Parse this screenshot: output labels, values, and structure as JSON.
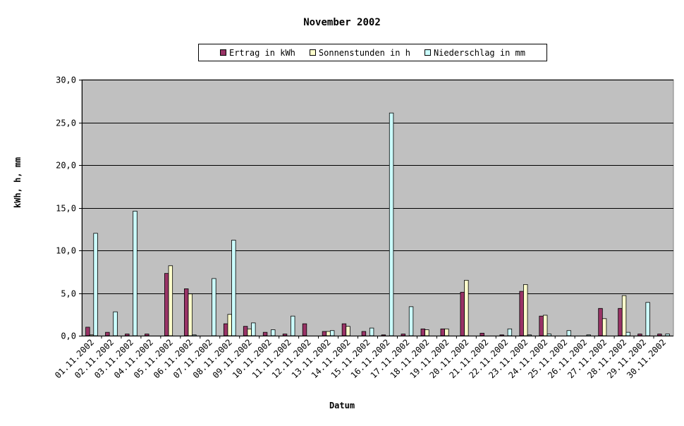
{
  "chart_data": {
    "type": "bar",
    "title": "November 2002",
    "xlabel": "Datum",
    "ylabel": "kWh, h, mm",
    "ylim": [
      0,
      30
    ],
    "yticks": [
      "0,0",
      "5,0",
      "10,0",
      "15,0",
      "20,0",
      "25,0",
      "30,0"
    ],
    "grid": true,
    "legend_position": "top",
    "categories": [
      "01.11.2002",
      "02.11.2002",
      "03.11.2002",
      "04.11.2002",
      "05.11.2002",
      "06.11.2002",
      "07.11.2002",
      "08.11.2002",
      "09.11.2002",
      "10.11.2002",
      "11.11.2002",
      "12.11.2002",
      "13.11.2002",
      "14.11.2002",
      "15.11.2002",
      "16.11.2002",
      "17.11.2002",
      "18.11.2002",
      "19.11.2002",
      "20.11.2002",
      "21.11.2002",
      "22.11.2002",
      "23.11.2002",
      "24.11.2002",
      "25.11.2002",
      "26.11.2002",
      "27.11.2002",
      "28.11.2002",
      "29.11.2002",
      "30.11.2002"
    ],
    "series": [
      {
        "name": "Ertrag in kWh",
        "color": "#993366",
        "values": [
          1.0,
          0.4,
          0.2,
          0.2,
          7.3,
          5.5,
          0,
          1.4,
          1.1,
          0.4,
          0.2,
          1.4,
          0.5,
          1.4,
          0.5,
          0.1,
          0.2,
          0.8,
          0.8,
          5.1,
          0.3,
          0.1,
          5.2,
          2.3,
          0,
          0,
          3.2,
          3.2,
          0.2,
          0.2
        ]
      },
      {
        "name": "Sonnenstunden in h",
        "color": "#ffffcc",
        "values": [
          0.1,
          0,
          0,
          0,
          8.2,
          4.9,
          0,
          2.5,
          0.8,
          0,
          0,
          0,
          0.5,
          1.1,
          0,
          0,
          0,
          0.7,
          0.8,
          6.5,
          0,
          0,
          6.0,
          2.4,
          0,
          0,
          2.0,
          4.7,
          0,
          0
        ]
      },
      {
        "name": "Niederschlag in mm",
        "color": "#ccffff",
        "values": [
          12.0,
          2.8,
          14.6,
          0,
          0,
          0.1,
          6.7,
          11.2,
          1.5,
          0.7,
          2.3,
          0,
          0.6,
          0,
          0.9,
          26.1,
          3.4,
          0,
          0,
          0,
          0,
          0.8,
          0.1,
          0.2,
          0.6,
          0.1,
          0,
          0.4,
          3.9,
          0.2
        ]
      }
    ]
  }
}
